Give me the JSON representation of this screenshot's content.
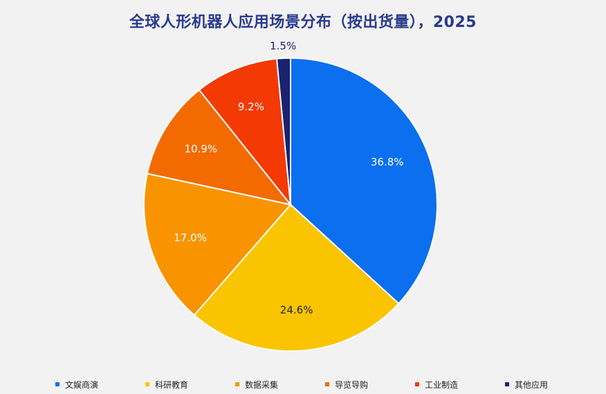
{
  "chart_data": {
    "type": "pie",
    "title": "全球人形机器人应用场景分布（按出货量），2025",
    "categories": [
      "文娱商演",
      "科研教育",
      "数据采集",
      "导览导购",
      "工业制造",
      "其他应用"
    ],
    "values": [
      36.8,
      24.6,
      17.0,
      10.9,
      9.2,
      1.5
    ],
    "value_labels": [
      "36.8%",
      "24.6%",
      "17.0%",
      "10.9%",
      "9.2%",
      "1.5%"
    ],
    "colors": [
      "#0b6ff0",
      "#fbc400",
      "#f99400",
      "#f36b00",
      "#f33a05",
      "#1a2370"
    ],
    "label_colors": [
      "#ffffff",
      "#222222",
      "#ffffff",
      "#ffffff",
      "#ffffff",
      "#1a2370"
    ],
    "start_angle_deg": 0,
    "direction": "clockwise",
    "legend_position": "bottom"
  }
}
